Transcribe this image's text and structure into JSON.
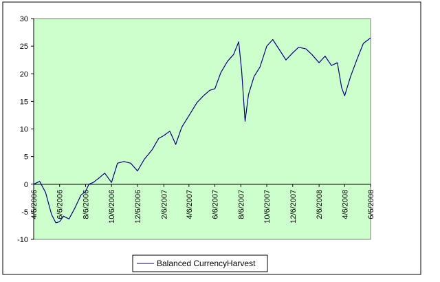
{
  "chart_data": {
    "type": "line",
    "title": "",
    "xlabel": "",
    "ylabel": "",
    "ylim": [
      -10,
      30
    ],
    "yticks": [
      -10,
      -5,
      0,
      5,
      10,
      15,
      20,
      25,
      30
    ],
    "ytick_labels": [
      "-10",
      "-5",
      "0",
      "5",
      "10",
      "15",
      "20",
      "25",
      "30"
    ],
    "xlim": [
      "2006-04-06",
      "2008-06-06"
    ],
    "xticks": [
      "2006-04-06",
      "2006-06-06",
      "2006-08-06",
      "2006-10-06",
      "2006-12-06",
      "2007-02-06",
      "2007-04-06",
      "2007-06-06",
      "2007-08-06",
      "2007-10-06",
      "2007-12-06",
      "2008-02-06",
      "2008-04-06",
      "2008-06-06"
    ],
    "xtick_labels": [
      "4/6/2006",
      "6/6/2006",
      "8/6/2006",
      "10/6/2006",
      "12/6/2006",
      "2/6/2007",
      "4/6/2007",
      "6/6/2007",
      "8/6/2007",
      "10/6/2007",
      "12/6/2007",
      "2/6/2008",
      "4/6/2008",
      "6/6/2008"
    ],
    "grid": false,
    "legend_position": "bottom",
    "plot_background": "#ccffcc",
    "series": [
      {
        "name": "Balanced CurrencyHarvest",
        "color": "#000080",
        "x": [
          "2006-04-06",
          "2006-04-20",
          "2006-05-04",
          "2006-05-18",
          "2006-05-28",
          "2006-06-06",
          "2006-06-15",
          "2006-06-28",
          "2006-07-12",
          "2006-07-26",
          "2006-08-06",
          "2006-08-14",
          "2006-08-24",
          "2006-09-08",
          "2006-09-20",
          "2006-10-06",
          "2006-10-20",
          "2006-11-04",
          "2006-11-20",
          "2006-12-06",
          "2006-12-22",
          "2007-01-10",
          "2007-01-25",
          "2007-02-06",
          "2007-02-20",
          "2007-03-06",
          "2007-03-20",
          "2007-04-06",
          "2007-04-25",
          "2007-05-10",
          "2007-05-25",
          "2007-06-06",
          "2007-06-20",
          "2007-07-06",
          "2007-07-20",
          "2007-08-01",
          "2007-08-08",
          "2007-08-16",
          "2007-08-24",
          "2007-09-06",
          "2007-09-20",
          "2007-10-06",
          "2007-10-20",
          "2007-11-06",
          "2007-11-20",
          "2007-12-06",
          "2007-12-20",
          "2008-01-06",
          "2008-01-20",
          "2008-02-06",
          "2008-02-20",
          "2008-03-06",
          "2008-03-20",
          "2008-03-30",
          "2008-04-06",
          "2008-04-20",
          "2008-05-06",
          "2008-05-20",
          "2008-06-06"
        ],
        "values": [
          0.0,
          0.5,
          -1.5,
          -5.5,
          -7.0,
          -6.8,
          -5.8,
          -6.3,
          -4.3,
          -2.0,
          -1.3,
          0.0,
          0.3,
          1.2,
          2.0,
          0.3,
          3.8,
          4.1,
          3.8,
          2.4,
          4.5,
          6.3,
          8.3,
          8.8,
          9.6,
          7.2,
          10.3,
          12.4,
          14.8,
          16.0,
          17.0,
          17.3,
          20.2,
          22.3,
          23.5,
          25.8,
          20.5,
          11.4,
          16.2,
          19.5,
          21.2,
          25.0,
          26.2,
          24.2,
          22.5,
          23.8,
          24.8,
          24.5,
          23.5,
          22.0,
          23.2,
          21.5,
          22.0,
          17.5,
          16.0,
          19.5,
          22.8,
          25.5,
          26.5
        ]
      }
    ]
  }
}
